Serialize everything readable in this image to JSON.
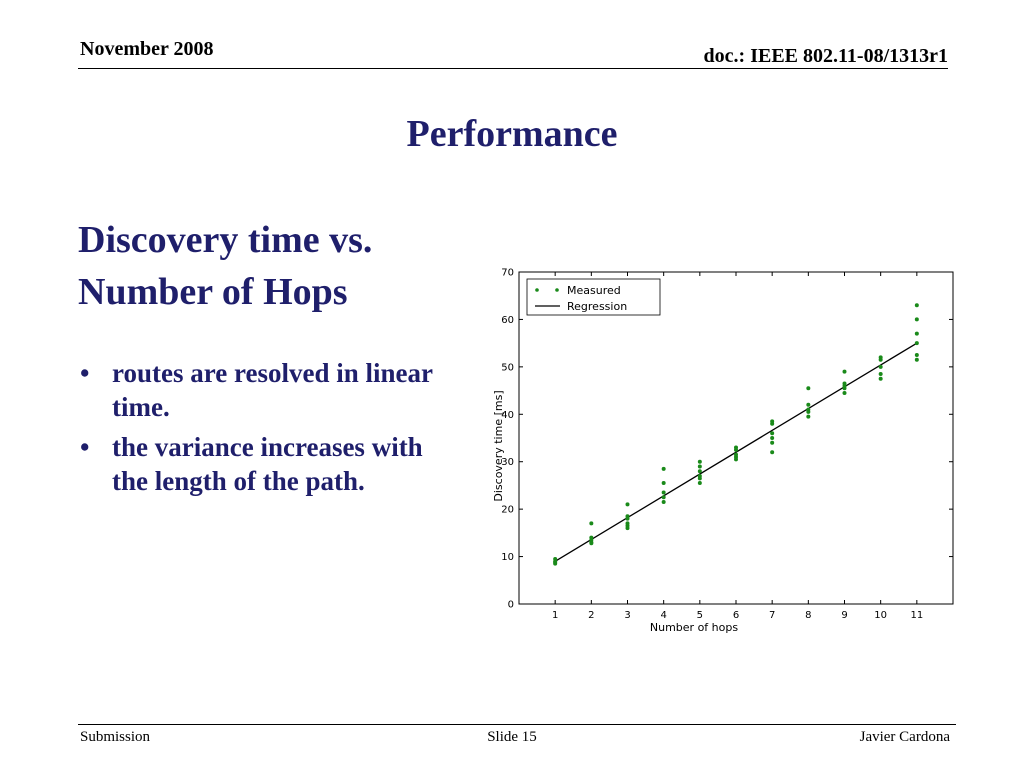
{
  "header": {
    "date": "November 2008",
    "doc_id": "doc.: IEEE 802.11-08/1313r1"
  },
  "slide": {
    "title": "Performance",
    "heading": "Discovery time vs. Number of Hops",
    "bullet_char": "•",
    "bullets": [
      "routes are resolved in linear time.",
      "the variance increases with the length of the path."
    ]
  },
  "footer": {
    "left": "Submission",
    "center": "Slide 15",
    "right": "Javier Cardona"
  },
  "colors": {
    "title": "#1f1f6b",
    "measured": "#1a8a1a",
    "regression": "#000000"
  },
  "chart_data": {
    "type": "scatter",
    "xlabel": "Number of hops",
    "ylabel": "Discovery time [ms]",
    "xlim": [
      0,
      12
    ],
    "ylim": [
      0,
      70
    ],
    "xticks": [
      1,
      2,
      3,
      4,
      5,
      6,
      7,
      8,
      9,
      10,
      11
    ],
    "yticks": [
      0,
      10,
      20,
      30,
      40,
      50,
      60,
      70
    ],
    "legend_position": "top-left",
    "grid": false,
    "series": [
      {
        "name": "Measured",
        "kind": "points",
        "x": [
          1,
          1,
          1,
          1,
          2,
          2,
          2,
          2,
          2,
          3,
          3,
          3,
          3,
          3,
          3,
          4,
          4,
          4,
          4,
          4,
          5,
          5,
          5,
          5,
          5,
          5,
          6,
          6,
          6,
          6,
          6,
          7,
          7,
          7,
          7,
          7,
          7,
          8,
          8,
          8,
          8,
          8,
          9,
          9,
          9,
          9,
          9,
          10,
          10,
          10,
          10,
          10,
          11,
          11,
          11,
          11,
          11,
          11
        ],
        "y": [
          8.5,
          9.0,
          9.5,
          8.8,
          13.0,
          13.5,
          14.0,
          17.0,
          12.8,
          16.0,
          17.0,
          18.0,
          18.5,
          21.0,
          16.5,
          21.5,
          22.5,
          23.5,
          25.5,
          28.5,
          25.5,
          26.5,
          28.0,
          29.0,
          30.0,
          27.0,
          30.5,
          31.5,
          32.5,
          33.0,
          31.0,
          32.0,
          34.0,
          35.0,
          36.0,
          38.0,
          38.5,
          39.5,
          40.5,
          42.0,
          45.5,
          41.0,
          44.5,
          45.5,
          46.5,
          49.0,
          46.0,
          47.5,
          48.5,
          50.0,
          51.5,
          52.0,
          51.5,
          52.5,
          55.0,
          57.0,
          60.0,
          63.0
        ]
      },
      {
        "name": "Regression",
        "kind": "line",
        "x": [
          1,
          11
        ],
        "y": [
          9.0,
          55.0
        ]
      }
    ]
  }
}
